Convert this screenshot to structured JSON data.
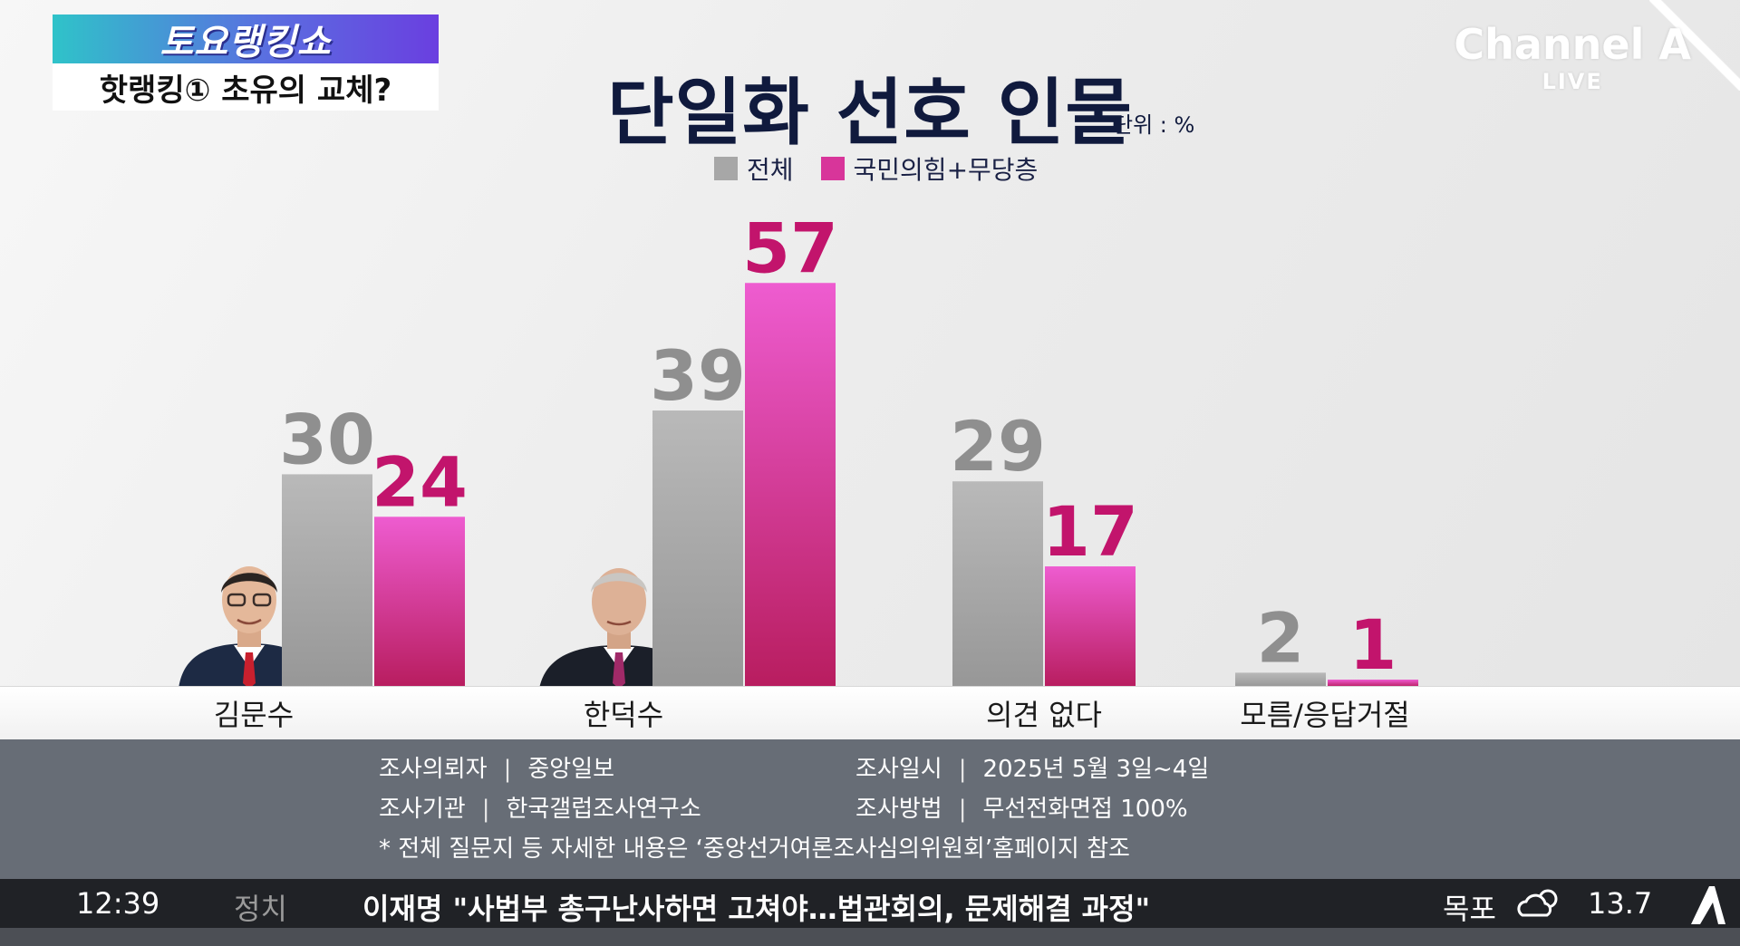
{
  "badge": {
    "program": "토요랭킹쇼",
    "subtitle": "핫랭킹① 초유의 교체?"
  },
  "channel": {
    "name": "Channel A",
    "live": "LIVE"
  },
  "colors": {
    "overall": "#a7a7a7",
    "ppp_independent": "#d8359a",
    "title": "#101a3d"
  },
  "chart_data": {
    "type": "bar",
    "title": "단일화 선호 인물",
    "unit": "단위 : %",
    "categories": [
      "김문수",
      "한덕수",
      "의견 없다",
      "모름/응답거절"
    ],
    "series": [
      {
        "name": "전체",
        "values": [
          30,
          39,
          29,
          2
        ]
      },
      {
        "name": "국민의힘+무당층",
        "values": [
          24,
          57,
          17,
          1
        ]
      }
    ],
    "ylim": [
      0,
      60
    ],
    "grid": false,
    "legend": "top-center"
  },
  "survey": {
    "client_label": "조사의뢰자",
    "client": "중앙일보",
    "agency_label": "조사기관",
    "agency": "한국갤럽조사연구소",
    "date_label": "조사일시",
    "date": "2025년 5월 3일~4일",
    "method_label": "조사방법",
    "method": "무선전화면접 100%",
    "note": "* 전체 질문지 등 자세한 내용은 ‘중앙선거여론조사심의위원회’홈페이지 참조"
  },
  "ticker": {
    "time": "12:39",
    "category": "정치",
    "headline": "이재명 \"사법부 총구난사하면 고쳐야…법관회의, 문제해결 과정\"",
    "city": "목포",
    "weather_icon": "partly-cloudy-icon",
    "temperature": "13.7"
  }
}
